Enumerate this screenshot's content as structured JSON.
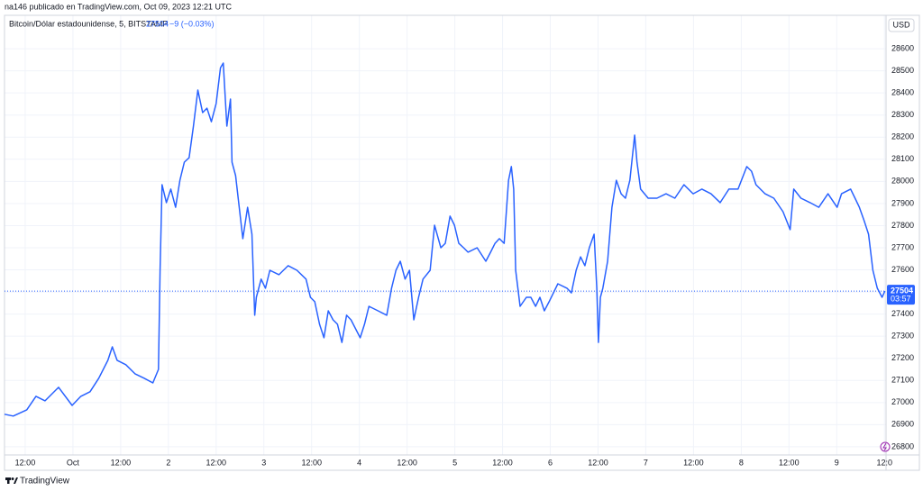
{
  "header": {
    "publisher": "na146 publicado en TradingView.com, Oct 09, 2023 12:21 UTC"
  },
  "chart_data": {
    "type": "line",
    "symbol": "Bitcoin/Dólar estadounidense, 5, BITSTAMP",
    "last_price": 27504,
    "change": "−9 (−0.03%)",
    "countdown": "03:57",
    "currency": "USD",
    "color": "#2962ff",
    "grid": true,
    "x": [
      6.8,
      9.0,
      12.4,
      14.7,
      17.0,
      20.4,
      23.8,
      26.0,
      28.3,
      30.5,
      32.8,
      33.9,
      35.1,
      37.3,
      39.6,
      41.9,
      44.1,
      45.5,
      45.9,
      46.4,
      47.5,
      48.6,
      49.8,
      50.9,
      52.0,
      53.2,
      54.3,
      55.4,
      56.6,
      57.7,
      58.8,
      60.0,
      61.1,
      61.8,
      62.7,
      63.6,
      64.0,
      64.9,
      65.8,
      66.7,
      67.9,
      69.0,
      69.7,
      70.1,
      71.3,
      72.4,
      73.5,
      75.8,
      78.1,
      80.3,
      82.6,
      83.7,
      84.8,
      86.0,
      87.1,
      88.2,
      89.4,
      90.5,
      91.6,
      92.8,
      93.9,
      96.2,
      97.3,
      98.4,
      100.7,
      102.9,
      104.1,
      105.2,
      106.3,
      107.5,
      108.6,
      109.7,
      110.9,
      112.0,
      113.8,
      114.9,
      116.5,
      117.6,
      118.8,
      119.9,
      121.0,
      122.2,
      123.3,
      125.6,
      127.8,
      129.0,
      130.1,
      131.2,
      132.4,
      133.5,
      134.2,
      134.8,
      135.3,
      136.4,
      138.0,
      139.1,
      140.3,
      141.4,
      142.5,
      143.7,
      145.9,
      148.2,
      149.3,
      150.5,
      151.6,
      152.7,
      153.8,
      155.0,
      155.7,
      156.1,
      156.6,
      157.2,
      158.4,
      159.5,
      160.6,
      161.8,
      162.9,
      164.0,
      165.2,
      165.8,
      166.7,
      168.6,
      170.8,
      173.1,
      175.3,
      177.6,
      179.9,
      182.1,
      184.4,
      186.7,
      188.9,
      191.2,
      193.4,
      194.6,
      195.7,
      198.0,
      200.2,
      202.5,
      204.3,
      205.2,
      207.0,
      209.3,
      211.5,
      213.8,
      216.1,
      217.2,
      219.5,
      220.6,
      221.7,
      222.9,
      224.0,
      225.1,
      226.2,
      227.4,
      228.1
    ],
    "values": [
      26947,
      26939,
      26967,
      27028,
      27008,
      27069,
      26987,
      27028,
      27049,
      27110,
      27191,
      27252,
      27191,
      27171,
      27130,
      27110,
      27089,
      27150,
      27598,
      27985,
      27904,
      27965,
      27883,
      28005,
      28087,
      28107,
      28250,
      28413,
      28311,
      28331,
      28270,
      28352,
      28514,
      28535,
      28250,
      28372,
      28087,
      28026,
      27883,
      27741,
      27883,
      27761,
      27395,
      27476,
      27558,
      27517,
      27598,
      27578,
      27619,
      27598,
      27558,
      27476,
      27456,
      27354,
      27293,
      27415,
      27374,
      27354,
      27272,
      27395,
      27374,
      27293,
      27354,
      27435,
      27415,
      27395,
      27517,
      27598,
      27639,
      27558,
      27598,
      27374,
      27476,
      27558,
      27598,
      27802,
      27700,
      27720,
      27843,
      27802,
      27720,
      27700,
      27680,
      27700,
      27639,
      27680,
      27720,
      27741,
      27720,
      28005,
      28067,
      27965,
      27598,
      27435,
      27476,
      27476,
      27435,
      27476,
      27415,
      27456,
      27537,
      27517,
      27496,
      27598,
      27659,
      27619,
      27700,
      27761,
      27517,
      27272,
      27476,
      27517,
      27639,
      27883,
      28005,
      27944,
      27924,
      28005,
      28209,
      28087,
      27965,
      27924,
      27924,
      27944,
      27924,
      27985,
      27944,
      27965,
      27944,
      27904,
      27965,
      27965,
      28067,
      28046,
      27985,
      27944,
      27924,
      27863,
      27782,
      27965,
      27924,
      27904,
      27883,
      27944,
      27883,
      27944,
      27965,
      27924,
      27883,
      27822,
      27761,
      27598,
      27517,
      27476,
      27504
    ],
    "xlim": [
      6.8,
      228.4
    ],
    "ylim": [
      26763,
      28751
    ],
    "xticks": [
      {
        "value": 12,
        "label": "12:00"
      },
      {
        "value": 24,
        "label": "Oct"
      },
      {
        "value": 36,
        "label": "12:00"
      },
      {
        "value": 48,
        "label": "2"
      },
      {
        "value": 60,
        "label": "12:00"
      },
      {
        "value": 72,
        "label": "3"
      },
      {
        "value": 84,
        "label": "12:00"
      },
      {
        "value": 96,
        "label": "4"
      },
      {
        "value": 108,
        "label": "12:00"
      },
      {
        "value": 120,
        "label": "5"
      },
      {
        "value": 132,
        "label": "12:00"
      },
      {
        "value": 144,
        "label": "6"
      },
      {
        "value": 156,
        "label": "12:00"
      },
      {
        "value": 168,
        "label": "7"
      },
      {
        "value": 180,
        "label": "12:00"
      },
      {
        "value": 192,
        "label": "8"
      },
      {
        "value": 204,
        "label": "12:00"
      },
      {
        "value": 216,
        "label": "9"
      },
      {
        "value": 228,
        "label": "12:0"
      }
    ],
    "yticks": [
      26800,
      26900,
      27000,
      27100,
      27200,
      27300,
      27400,
      27500,
      27600,
      27700,
      27800,
      27900,
      28000,
      28100,
      28200,
      28300,
      28400,
      28500,
      28600
    ]
  },
  "footer": {
    "brand": "TradingView"
  }
}
